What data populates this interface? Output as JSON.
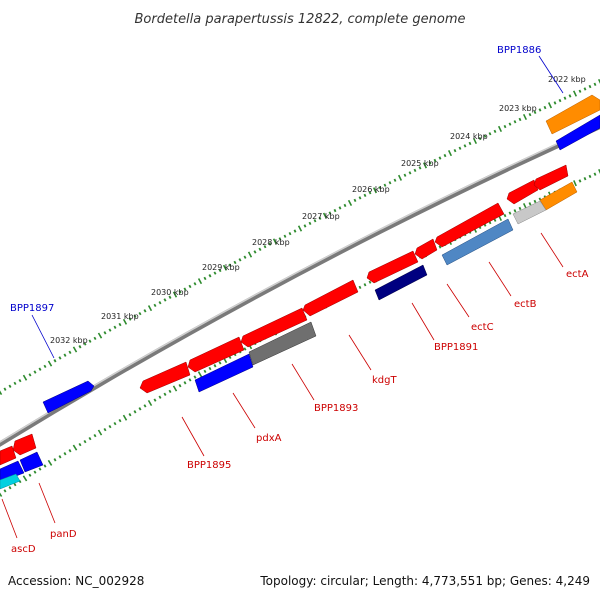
{
  "title": "Bordetella parapertussis 12822, complete genome",
  "footer": {
    "accession": "Accession: NC_002928",
    "summary": "Topology: circular; Length: 4,773,551 bp; Genes: 4,249"
  },
  "colors": {
    "backbone": "#888888",
    "tick": "#2e8b2e",
    "label_forward": "#0000cc",
    "label_reverse": "#cc0000",
    "red": "#ff0000",
    "blue": "#0000ff",
    "navy": "#000080",
    "steel": "#4f87c4",
    "orange": "#ff8c00",
    "gray": "#6f6f6f",
    "silver": "#bfbfbf",
    "cyan": "#00d0e0"
  },
  "scale_labels": [
    "2022 kbp",
    "2023 kbp",
    "2024 kbp",
    "2025 kbp",
    "2026 kbp",
    "2027 kbp",
    "2028 kbp",
    "2029 kbp",
    "2030 kbp",
    "2031 kbp",
    "2032 kbp"
  ],
  "gene_labels": {
    "forward": [
      "BPP1886",
      "BPP1897"
    ],
    "reverse": [
      "ectA",
      "ectB",
      "ectC",
      "BPP1891",
      "kdgT",
      "BPP1893",
      "pdxA",
      "BPP1895",
      "panD",
      "ascD"
    ]
  }
}
